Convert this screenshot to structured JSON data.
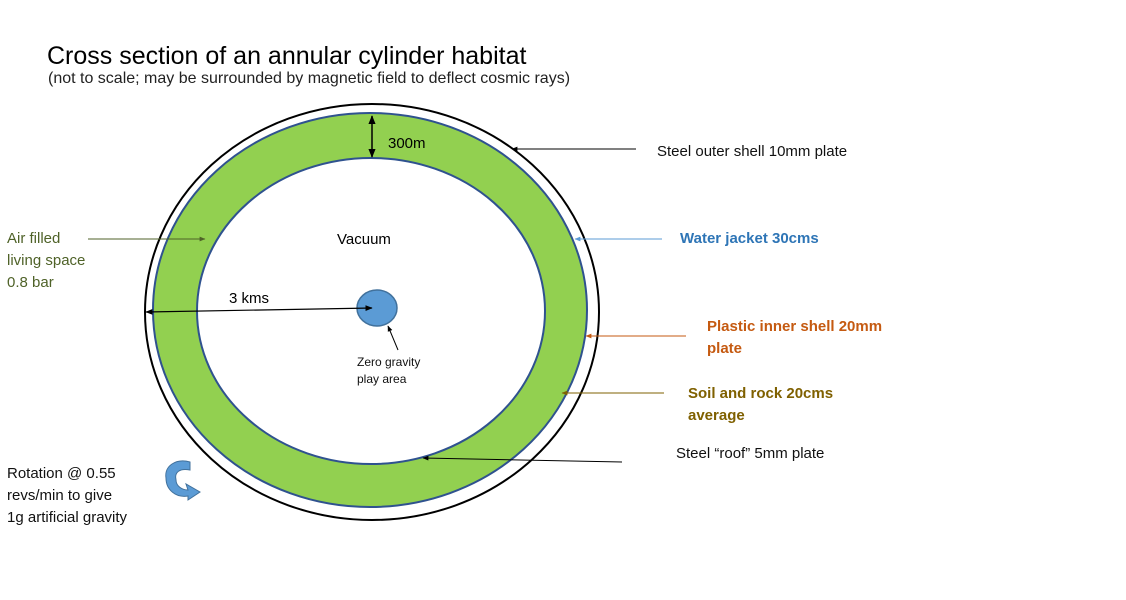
{
  "title": "Cross section of an annular cylinder habitat",
  "subtitle": "(not to scale; may be surrounded by magnetic field to deflect cosmic rays)",
  "labels": {
    "thickness": "300m",
    "vacuum": "Vacuum",
    "radius": "3 kms",
    "zero_gravity_line1": "Zero gravity",
    "zero_gravity_line2": "play area",
    "air_line1": "Air filled",
    "air_line2": "living space",
    "air_line3": "0.8 bar",
    "steel_outer": "Steel outer shell 10mm plate",
    "water_jacket": "Water jacket 30cms",
    "plastic_line1": "Plastic inner shell 20mm",
    "plastic_line2": "plate",
    "soil_line1": "Soil and rock 20cms",
    "soil_line2": "average",
    "steel_roof": "Steel “roof” 5mm plate",
    "rotation_line1": "Rotation @ 0.55",
    "rotation_line2": "revs/min to give",
    "rotation_line3": "1g artificial gravity"
  },
  "colors": {
    "ring_fill": "#92d050",
    "ring_stroke": "#2f528f",
    "core_fill": "#5b9bd5",
    "air_text": "#4f6228",
    "water_text": "#2e75b6",
    "plastic_text": "#c55a11",
    "soil_text": "#7f6000",
    "rotation_arrow": "#5b9bd5"
  },
  "icons": {
    "rotation": "curved-rotation-arrow-icon"
  }
}
